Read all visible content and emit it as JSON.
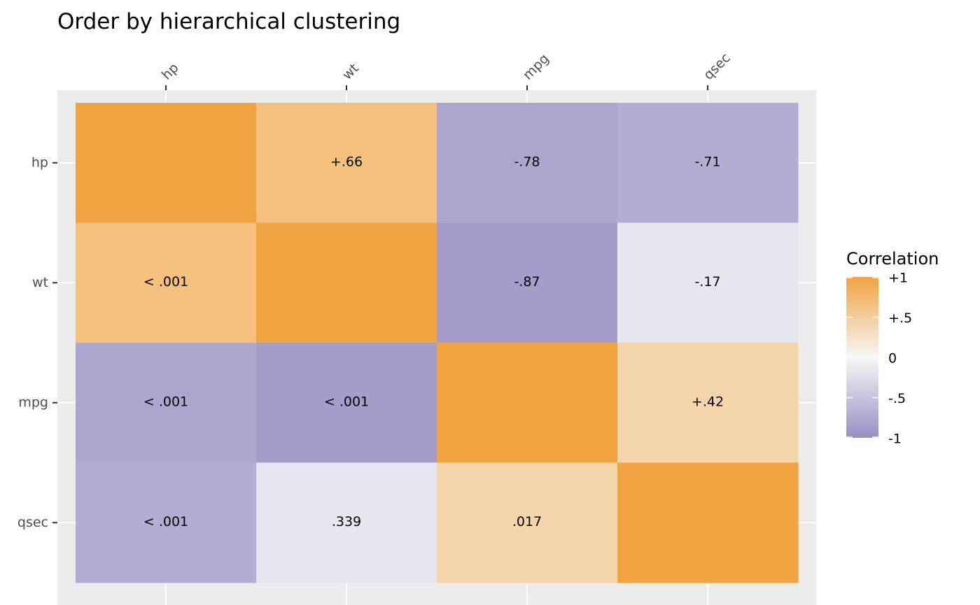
{
  "chart_data": {
    "type": "heatmap",
    "title": "Order by hierarchical clustering",
    "x_categories": [
      "hp",
      "wt",
      "mpg",
      "qsec"
    ],
    "y_categories": [
      "hp",
      "wt",
      "mpg",
      "qsec"
    ],
    "correlations": [
      [
        1.0,
        0.66,
        -0.78,
        -0.71
      ],
      [
        0.66,
        1.0,
        -0.87,
        -0.17
      ],
      [
        -0.78,
        -0.87,
        1.0,
        0.42
      ],
      [
        -0.71,
        -0.17,
        0.42,
        1.0
      ]
    ],
    "cell_labels": [
      [
        "",
        "+.66",
        "-.78",
        "-.71"
      ],
      [
        "< .001",
        "",
        "-.87",
        "-.17"
      ],
      [
        "< .001",
        "< .001",
        "",
        "+.42"
      ],
      [
        "< .001",
        ".339",
        ".017",
        ""
      ]
    ],
    "x_axis_position": "top",
    "grid": true,
    "colors": {
      "positive": "#f1a340",
      "mid": "#f7f7f7",
      "negative": "#998ec3",
      "panel_background": "#ebebeb",
      "grid": "#ffffff"
    },
    "legend": {
      "title": "Correlation",
      "position": "right",
      "limits": [
        -1,
        1
      ],
      "breaks": [
        1,
        0.5,
        0,
        -0.5,
        -1
      ],
      "labels": [
        "+1",
        "+.5",
        "0",
        "-.5",
        "-1"
      ]
    }
  }
}
